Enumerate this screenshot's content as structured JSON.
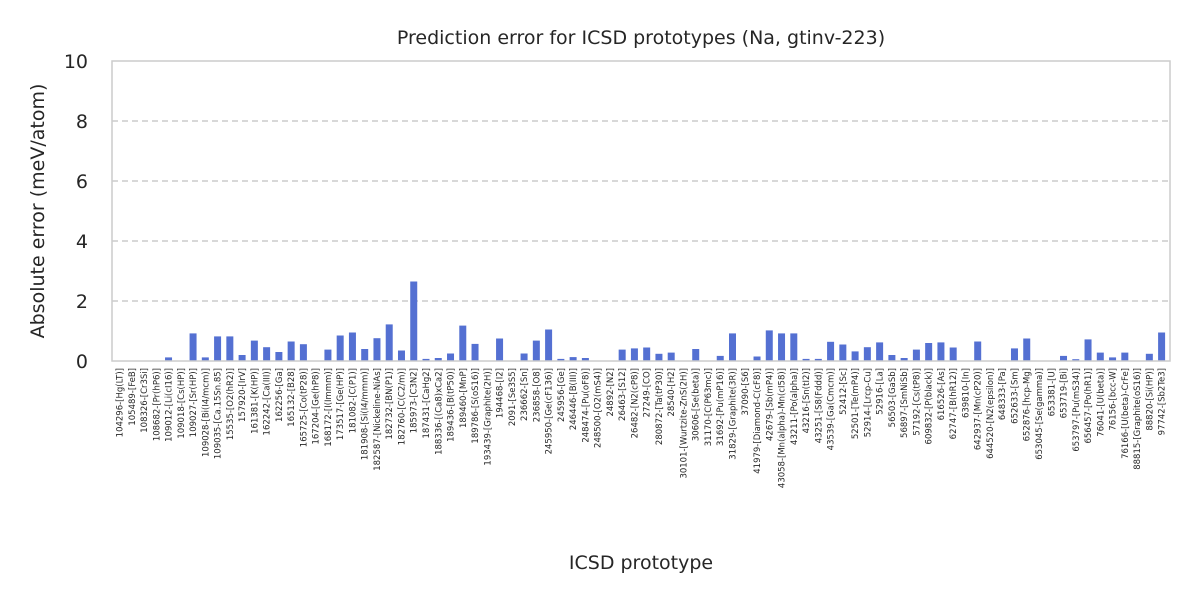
{
  "chart_data": {
    "type": "bar",
    "title": "Prediction error for ICSD prototypes (Na, gtinv-223)",
    "xlabel": "ICSD prototype",
    "ylabel": "Absolute error (meV/atom)",
    "ylim": [
      0,
      10
    ],
    "yticks": [
      0,
      2,
      4,
      6,
      8,
      10
    ],
    "grid": "y dashed",
    "colors": {
      "bar": "#5470d2",
      "grid": "#cccccc",
      "frame": "#cccccc"
    },
    "tick_labels": [
      "104296-[Hg(LT)]",
      "105489-[FeB]",
      "108326-[Cr3Si]",
      "108682-[Pr(hP6)]",
      "109012-[Li(cI16)]",
      "109018-[Cs(HP)]",
      "109027-[Sr(HP)]",
      "109028-[Bi(I4/mcm)]",
      "109035-[Ca.15Sn.85]",
      "15535-[O2(hR2)]",
      "157920-[IrV]",
      "161381-[K(HP)]",
      "162242-[Ca(III)]",
      "162256-[Ga]",
      "165132-[B28]",
      "165725-[Co(tP28)]",
      "167204-[Ge(hP8)]",
      "168172-[I(Immm)]",
      "173517-[Ge(HP)]",
      "181082-[C(P1)]",
      "181908-[Si(I4/mmm)]",
      "182587-[Nickeline-NiAs]",
      "182732-[BN(P1)]",
      "182760-[C(C2/m)]",
      "185973-[C3N2]",
      "187431-[CaHg2]",
      "188336-[(Ca8)xCa2]",
      "189436-[B(tP50)]",
      "189460-[MnP]",
      "189786-[S(oS16)]",
      "193439-[Graphite(2H)]",
      "194468-[I2]",
      "2091-[Se3S5]",
      "236662-[Sn]",
      "236858-[O8]",
      "245950-[Ge(cF136)]",
      "245956-[Ge]",
      "246446-[B(III)]",
      "248474-[Pu(oF8)]",
      "248500-[O2(mS4)]",
      "24892-[N2]",
      "26463-[S12]",
      "26482-[N2(cP8)]",
      "27249-[CO]",
      "280872-[Ta(tP30)]",
      "28540-[H2]",
      "30101-[Wurtzite-ZnS(2H)]",
      "30606-[Se(beta)]",
      "31170-[C(P63mc)]",
      "31692-[Pu(mP16)]",
      "31829-[Graphite(3R)]",
      "37090-[S6]",
      "41979-[Diamond-C(cF8)]",
      "42679-[Sb(mP4)]",
      "43058-[Mn(alpha)-Mn(cI58)]",
      "43211-[Po(alpha)]",
      "43216-[Sn(tI2)]",
      "43251-[S8(Fddd)]",
      "43539-[Ga(Cmcm)]",
      "52412-[Sc]",
      "52501-[Te(mP4)]",
      "52914-[Lrcp-Cu]",
      "52916-[La]",
      "56503-[GaSb]",
      "56897-[SmNiSb]",
      "57192-[Cs(tP8)]",
      "609832-[P(black)]",
      "616526-[As]",
      "62747-[B(hR12)]",
      "639810-[In]",
      "642937-[Mn(cP20)]",
      "644520-[N2(epsilon)]",
      "648333-[Pa]",
      "652633-[Sm]",
      "652876-[hcp-Mg]",
      "653045-[Se(gamma)]",
      "653381-[U]",
      "653719-[Bi]",
      "653797-[Pu(mS34)]",
      "656457-[Po(hR1)]",
      "76041-[U(beta)]",
      "76156-[bcc-W]",
      "76166-[U(beta)-CrFe]",
      "88815-[Graphite(oS16)]",
      "88820-[Si(HP)]",
      "97742-[Sb2Te3]"
    ],
    "values": [
      0.0,
      0.0,
      0.0,
      0.0,
      0.12,
      0.0,
      0.92,
      0.12,
      0.82,
      0.82,
      0.2,
      0.68,
      0.46,
      0.3,
      0.65,
      0.56,
      0.0,
      0.38,
      0.85,
      0.95,
      0.4,
      0.76,
      1.22,
      0.35,
      2.65,
      0.07,
      0.1,
      0.25,
      1.18,
      0.57,
      0.0,
      0.75,
      0.0,
      0.25,
      0.68,
      1.05,
      0.07,
      0.13,
      0.1,
      0.0,
      0.0,
      0.38,
      0.42,
      0.45,
      0.24,
      0.28,
      0.0,
      0.4,
      0.0,
      0.17,
      0.92,
      0.0,
      0.15,
      1.02,
      0.92,
      0.92,
      0.07,
      0.07,
      0.64,
      0.55,
      0.32,
      0.46,
      0.62,
      0.2,
      0.1,
      0.38,
      0.6,
      0.62,
      0.45,
      0.0,
      0.65,
      0.0,
      0.0,
      0.42,
      0.75,
      0.0,
      0.0,
      0.17,
      0.06,
      0.72,
      0.28,
      0.12,
      0.28,
      0.0,
      0.24,
      0.95
    ],
    "bar_positions": [
      0,
      1,
      2,
      3,
      4,
      5,
      6,
      7,
      8,
      9,
      10,
      11,
      12,
      13,
      14,
      15,
      16,
      17,
      18,
      19,
      20,
      21,
      22,
      23,
      24,
      25,
      26,
      27,
      28,
      29,
      30,
      31,
      32,
      33,
      34,
      35,
      36,
      37,
      38,
      39,
      40,
      41,
      42,
      43,
      44,
      45,
      46,
      47,
      48,
      49,
      50,
      51,
      52,
      53,
      54,
      55,
      56,
      57,
      58,
      59,
      60,
      61,
      62,
      63,
      64,
      65,
      66,
      67,
      68,
      69,
      70,
      71,
      72,
      73,
      74,
      75,
      76,
      77,
      78,
      79,
      80,
      81,
      82,
      83,
      84,
      85
    ]
  }
}
